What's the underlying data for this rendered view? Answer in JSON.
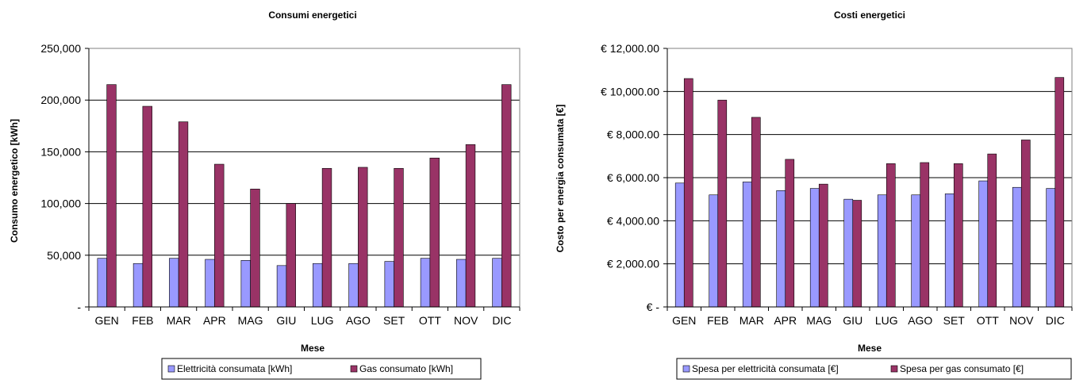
{
  "chart_data": [
    {
      "type": "bar",
      "title": "Consumi energetici",
      "xlabel": "Mese",
      "ylabel": "Consumo energetico [kWh]",
      "categories": [
        "GEN",
        "FEB",
        "MAR",
        "APR",
        "MAG",
        "GIU",
        "LUG",
        "AGO",
        "SET",
        "OTT",
        "NOV",
        "DIC"
      ],
      "ylim": [
        0,
        250000
      ],
      "yticks": [
        0,
        50000,
        100000,
        150000,
        200000,
        250000
      ],
      "ytick_labels": [
        "-",
        "50,000",
        "100,000",
        "150,000",
        "200,000",
        "250,000"
      ],
      "grid": true,
      "legend_position": "bottom",
      "series": [
        {
          "name": "Elettricità consumata [kWh]",
          "color": "#9999FF",
          "values": [
            47000,
            42000,
            47000,
            46000,
            45000,
            40000,
            42000,
            42000,
            44000,
            47000,
            46000,
            47000
          ]
        },
        {
          "name": "Gas consumato [kWh]",
          "color": "#993366",
          "values": [
            215000,
            194000,
            179000,
            138000,
            114000,
            100000,
            134000,
            135000,
            134000,
            144000,
            157000,
            215000
          ]
        }
      ]
    },
    {
      "type": "bar",
      "title": "Costi energetici",
      "xlabel": "Mese",
      "ylabel": "Costo per energia consumata [€]",
      "categories": [
        "GEN",
        "FEB",
        "MAR",
        "APR",
        "MAG",
        "GIU",
        "LUG",
        "AGO",
        "SET",
        "OTT",
        "NOV",
        "DIC"
      ],
      "ylim": [
        0,
        12000
      ],
      "yticks": [
        0,
        2000,
        4000,
        6000,
        8000,
        10000,
        12000
      ],
      "ytick_labels": [
        "€ -",
        "€ 2,000.00",
        "€ 4,000.00",
        "€ 6,000.00",
        "€ 8,000.00",
        "€ 10,000.00",
        "€ 12,000.00"
      ],
      "grid": true,
      "legend_position": "bottom",
      "series": [
        {
          "name": "Spesa per elettricità consumata [€]",
          "color": "#9999FF",
          "values": [
            5750,
            5200,
            5800,
            5400,
            5500,
            5000,
            5200,
            5200,
            5250,
            5850,
            5550,
            5500
          ]
        },
        {
          "name": "Spesa per gas consumato [€]",
          "color": "#993366",
          "values": [
            10600,
            9600,
            8800,
            6850,
            5700,
            4950,
            6650,
            6700,
            6650,
            7100,
            7750,
            10650
          ]
        }
      ]
    }
  ]
}
